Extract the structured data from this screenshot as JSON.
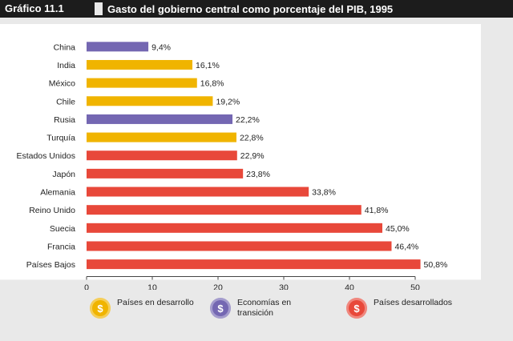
{
  "header": {
    "badge": "Gráfico 11.1",
    "title": "Gasto del gobierno central como porcentaje del PIB, 1995"
  },
  "chart_data": {
    "type": "bar",
    "orientation": "horizontal",
    "categories": [
      "China",
      "India",
      "México",
      "Chile",
      "Rusia",
      "Turquía",
      "Estados Unidos",
      "Japón",
      "Alemania",
      "Reino Unido",
      "Suecia",
      "Francia",
      "Países Bajos"
    ],
    "values": [
      9.4,
      16.1,
      16.8,
      19.2,
      22.2,
      22.8,
      22.9,
      23.8,
      33.8,
      41.8,
      45.0,
      46.4,
      50.8
    ],
    "value_labels": [
      "9,4%",
      "16,1%",
      "16,8%",
      "19,2%",
      "22,2%",
      "22,8%",
      "22,9%",
      "23,8%",
      "33,8%",
      "41,8%",
      "45,0%",
      "46,4%",
      "50,8%"
    ],
    "groups": [
      "transicion",
      "desarrollo",
      "desarrollo",
      "desarrollo",
      "transicion",
      "desarrollo",
      "desarrollados",
      "desarrollados",
      "desarrollados",
      "desarrollados",
      "desarrollados",
      "desarrollados",
      "desarrollados"
    ],
    "xlim": [
      0,
      50
    ],
    "xticks": [
      0,
      10,
      20,
      30,
      40,
      50
    ],
    "grid": false,
    "legend_position": "bottom"
  },
  "legend": [
    {
      "key": "desarrollo",
      "label": "Países en desarrollo",
      "color": "#f0b400",
      "icon": "money-bag-icon"
    },
    {
      "key": "transicion",
      "label": "Economías en transición",
      "color": "#7467b2",
      "icon": "money-bag-icon"
    },
    {
      "key": "desarrollados",
      "label": "Países desarrollados",
      "color": "#e8483a",
      "icon": "money-bag-icon"
    }
  ]
}
